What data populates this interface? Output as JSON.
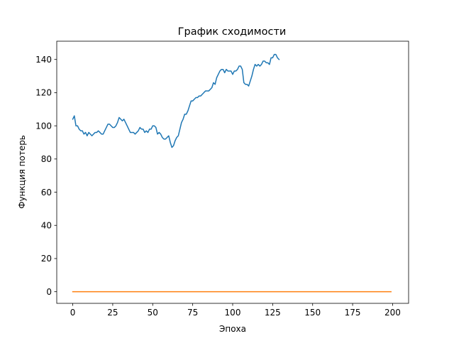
{
  "chart_data": {
    "type": "line",
    "title": "График сходимости",
    "xlabel": "Эпоха",
    "ylabel": "Функция потерь",
    "xlim": [
      -10,
      210
    ],
    "ylim": [
      -7,
      151
    ],
    "xticks": [
      0,
      25,
      50,
      75,
      100,
      125,
      150,
      175,
      200
    ],
    "yticks": [
      0,
      20,
      40,
      60,
      80,
      100,
      120,
      140
    ],
    "grid": false,
    "legend": "none",
    "series": [
      {
        "color": "#1f77b4",
        "points": [
          [
            0,
            104
          ],
          [
            1,
            106
          ],
          [
            2,
            100
          ],
          [
            3,
            100
          ],
          [
            4,
            98
          ],
          [
            5,
            97
          ],
          [
            6,
            97
          ],
          [
            7,
            95
          ],
          [
            8,
            96
          ],
          [
            9,
            94
          ],
          [
            10,
            96
          ],
          [
            11,
            95
          ],
          [
            12,
            94
          ],
          [
            13,
            95
          ],
          [
            14,
            96
          ],
          [
            15,
            96
          ],
          [
            16,
            97
          ],
          [
            17,
            96
          ],
          [
            18,
            95
          ],
          [
            19,
            95
          ],
          [
            20,
            97
          ],
          [
            21,
            99
          ],
          [
            22,
            101
          ],
          [
            23,
            101
          ],
          [
            24,
            100
          ],
          [
            25,
            99
          ],
          [
            26,
            99
          ],
          [
            27,
            100
          ],
          [
            28,
            102
          ],
          [
            29,
            105
          ],
          [
            30,
            104
          ],
          [
            31,
            103
          ],
          [
            32,
            104
          ],
          [
            33,
            102
          ],
          [
            34,
            100
          ],
          [
            35,
            98
          ],
          [
            36,
            96
          ],
          [
            37,
            96
          ],
          [
            38,
            96
          ],
          [
            39,
            95
          ],
          [
            40,
            96
          ],
          [
            41,
            97
          ],
          [
            42,
            99
          ],
          [
            43,
            98
          ],
          [
            44,
            98
          ],
          [
            45,
            96
          ],
          [
            46,
            97
          ],
          [
            47,
            96
          ],
          [
            48,
            98
          ],
          [
            49,
            98
          ],
          [
            50,
            100
          ],
          [
            51,
            100
          ],
          [
            52,
            99
          ],
          [
            53,
            95
          ],
          [
            54,
            96
          ],
          [
            55,
            95
          ],
          [
            56,
            93
          ],
          [
            57,
            92
          ],
          [
            58,
            92
          ],
          [
            59,
            93
          ],
          [
            60,
            94
          ],
          [
            61,
            90
          ],
          [
            62,
            87
          ],
          [
            63,
            88
          ],
          [
            64,
            91
          ],
          [
            65,
            93
          ],
          [
            66,
            94
          ],
          [
            67,
            98
          ],
          [
            68,
            102
          ],
          [
            69,
            104
          ],
          [
            70,
            107
          ],
          [
            71,
            107
          ],
          [
            72,
            109
          ],
          [
            73,
            112
          ],
          [
            74,
            115
          ],
          [
            75,
            115
          ],
          [
            76,
            116
          ],
          [
            77,
            117
          ],
          [
            78,
            117
          ],
          [
            79,
            118
          ],
          [
            80,
            118
          ],
          [
            81,
            119
          ],
          [
            82,
            120
          ],
          [
            83,
            121
          ],
          [
            84,
            121
          ],
          [
            85,
            121
          ],
          [
            86,
            122
          ],
          [
            87,
            123
          ],
          [
            88,
            126
          ],
          [
            89,
            125
          ],
          [
            90,
            129
          ],
          [
            91,
            131
          ],
          [
            92,
            133
          ],
          [
            93,
            134
          ],
          [
            94,
            134
          ],
          [
            95,
            132
          ],
          [
            96,
            134
          ],
          [
            97,
            133
          ],
          [
            98,
            133
          ],
          [
            99,
            133
          ],
          [
            100,
            131
          ],
          [
            101,
            133
          ],
          [
            102,
            133
          ],
          [
            103,
            134
          ],
          [
            104,
            136
          ],
          [
            105,
            136
          ],
          [
            106,
            134
          ],
          [
            107,
            126
          ],
          [
            108,
            125
          ],
          [
            109,
            125
          ],
          [
            110,
            124
          ],
          [
            111,
            127
          ],
          [
            112,
            130
          ],
          [
            113,
            134
          ],
          [
            114,
            137
          ],
          [
            115,
            136
          ],
          [
            116,
            137
          ],
          [
            117,
            136
          ],
          [
            118,
            137
          ],
          [
            119,
            139
          ],
          [
            120,
            139
          ],
          [
            121,
            138
          ],
          [
            122,
            138
          ],
          [
            123,
            137
          ],
          [
            124,
            141
          ],
          [
            125,
            141
          ],
          [
            126,
            143
          ],
          [
            127,
            143
          ],
          [
            128,
            141
          ],
          [
            129,
            140
          ]
        ]
      },
      {
        "color": "#ff7f0e",
        "points": [
          [
            0,
            0
          ],
          [
            199,
            0
          ]
        ]
      }
    ]
  }
}
